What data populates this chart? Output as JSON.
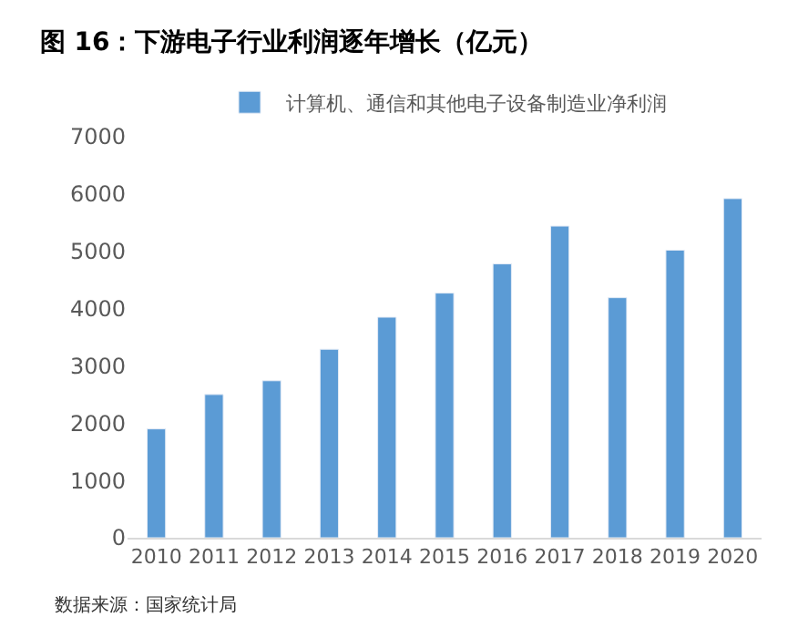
{
  "chart_data": {
    "type": "bar",
    "title": "图 16：下游电子行业利润逐年增长（亿元）",
    "categories": [
      "2010",
      "2011",
      "2012",
      "2013",
      "2014",
      "2015",
      "2016",
      "2017",
      "2018",
      "2019",
      "2020"
    ],
    "series": [
      {
        "name": "计算机、通信和其他电子设备制造业净利润",
        "color": "#5b9bd5",
        "values": [
          1900,
          2500,
          2740,
          3290,
          3850,
          4270,
          4780,
          5440,
          4190,
          5020,
          5920
        ]
      }
    ],
    "ylim": [
      0,
      7000
    ],
    "yticks": [
      0,
      1000,
      2000,
      3000,
      4000,
      5000,
      6000,
      7000
    ],
    "grid": false,
    "legend": "top",
    "annotations": [
      "数据来源：国家统计局"
    ]
  }
}
